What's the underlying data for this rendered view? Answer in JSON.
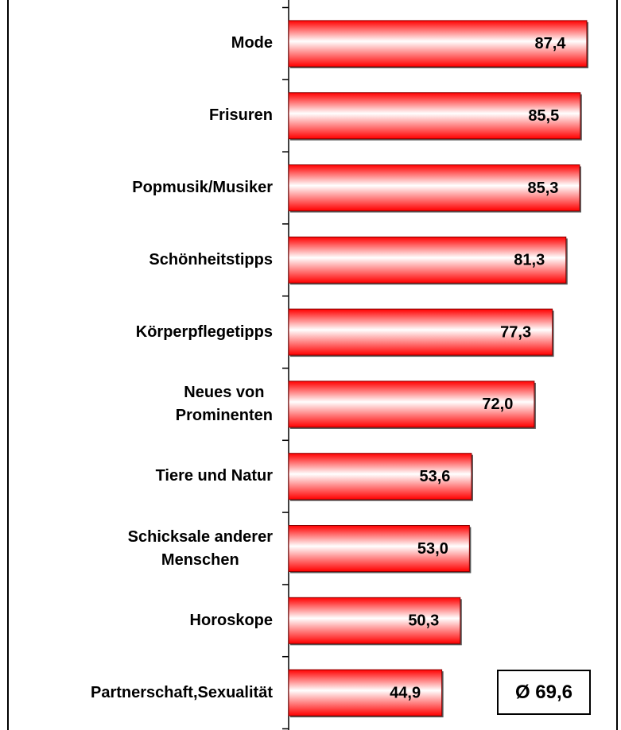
{
  "chart_data": {
    "type": "bar",
    "orientation": "horizontal",
    "categories": [
      "Mode",
      "Frisuren",
      "Popmusik/Musiker",
      "Schönheitstipps",
      "Körperpflegetipps",
      "Neues von\nProminenten",
      "Tiere und Natur",
      "Schicksale anderer\nMenschen",
      "Horoskope",
      "Partnerschaft,Sexualität"
    ],
    "values": [
      87.4,
      85.5,
      85.3,
      81.3,
      77.3,
      72.0,
      53.6,
      53.0,
      50.3,
      44.9
    ],
    "value_labels": [
      "87,4",
      "85,5",
      "85,3",
      "81,3",
      "77,3",
      "72,0",
      "53,6",
      "53,0",
      "50,3",
      "44,9"
    ],
    "color": "#ff0000",
    "xlim": [
      0,
      96
    ],
    "annotation": "Ø 69,6"
  }
}
